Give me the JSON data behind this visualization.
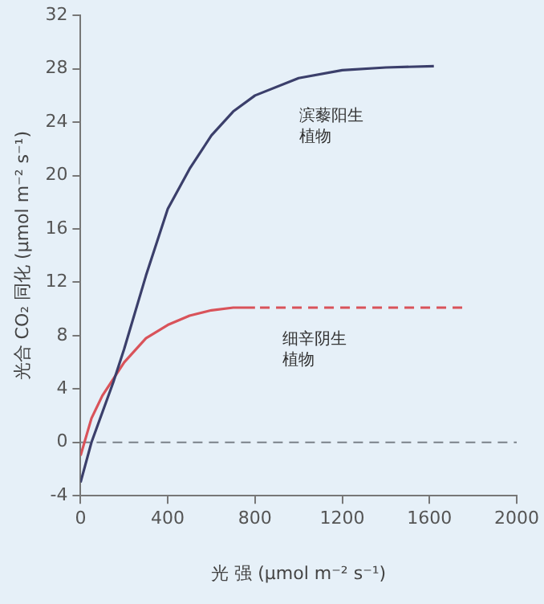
{
  "chart_data": {
    "type": "line",
    "xlabel": "光 强 (μmol m⁻² s⁻¹)",
    "ylabel": "光合 CO₂ 同化 (μmol m⁻² s⁻¹)",
    "xlim": [
      0,
      2000
    ],
    "xticks": [
      0,
      400,
      800,
      1200,
      1600,
      2000
    ],
    "ylim": [
      -4,
      32
    ],
    "yticks": [
      -4,
      0,
      4,
      8,
      12,
      16,
      20,
      24,
      28,
      32
    ],
    "grid": false,
    "legend": false,
    "marker": "none",
    "series": [
      {
        "name": "滨藜阳生植物",
        "color": "#3b3f6b",
        "line_style": "solid",
        "x": [
          0,
          50,
          150,
          200,
          300,
          400,
          500,
          600,
          700,
          800,
          1000,
          1200,
          1400,
          1620
        ],
        "values": [
          -3,
          0,
          4.5,
          7,
          12.5,
          17.5,
          20.5,
          23,
          24.8,
          26,
          27.3,
          27.9,
          28.1,
          28.2
        ]
      },
      {
        "color": "#d9535a",
        "line_style": "solid",
        "x": [
          0,
          50,
          100,
          200,
          300,
          400,
          500,
          600,
          700,
          800
        ],
        "values": [
          -1,
          1.8,
          3.5,
          6,
          7.8,
          8.8,
          9.5,
          9.9,
          10.1,
          10.1
        ]
      },
      {
        "name": "细辛阴生植物",
        "color": "#d9535a",
        "line_style": "dashed",
        "x": [
          800,
          1750
        ],
        "values": [
          10.1,
          10.1
        ]
      }
    ],
    "ref_lines": [
      {
        "axis": "y",
        "value": 0,
        "color": "#7a8088",
        "line_style": "dashed"
      }
    ]
  }
}
